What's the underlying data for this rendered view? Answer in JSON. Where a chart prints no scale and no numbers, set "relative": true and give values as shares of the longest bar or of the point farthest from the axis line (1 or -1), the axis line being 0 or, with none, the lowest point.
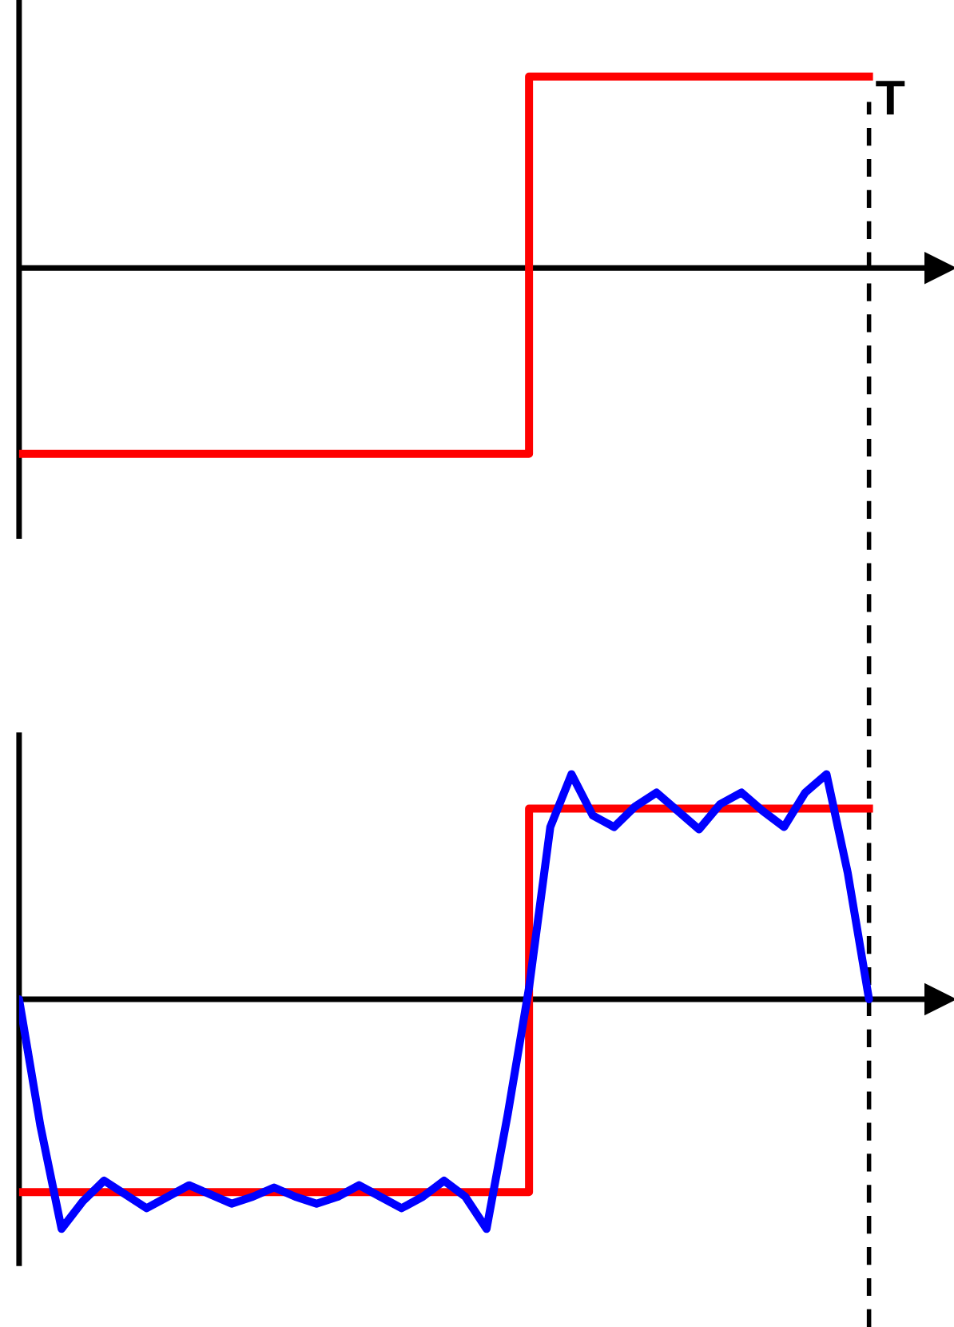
{
  "chart_data": [
    {
      "type": "step",
      "relative": true,
      "categories": [
        null,
        null,
        null,
        null,
        null,
        null,
        null,
        null,
        null,
        null,
        null,
        null,
        null,
        null,
        null,
        null,
        null,
        null,
        null,
        null,
        null,
        null,
        null,
        null,
        null,
        null,
        null,
        null,
        null,
        null,
        null,
        null,
        null,
        null,
        null,
        null,
        null,
        null,
        null,
        null,
        null
      ],
      "series": [
        {
          "color": "#ff0000",
          "values": [
            -0.97,
            -0.97,
            -0.97,
            -0.97,
            -0.97,
            -0.97,
            -0.97,
            -0.97,
            -0.97,
            -0.97,
            -0.97,
            -0.97,
            -0.97,
            -0.97,
            -0.97,
            -0.97,
            -0.97,
            -0.97,
            -0.97,
            -0.97,
            -0.97,
            -0.97,
            -0.97,
            -0.97,
            1,
            1,
            1,
            1,
            1,
            1,
            1,
            1,
            1,
            1,
            1,
            1,
            1,
            1,
            1,
            1,
            1
          ]
        }
      ],
      "ref_lines": [
        {
          "axis": "x",
          "label": "T",
          "color": "#000000",
          "line_style": "dashed"
        }
      ]
    },
    {
      "type": "step",
      "relative": true,
      "categories": [
        null,
        null,
        null,
        null,
        null,
        null,
        null,
        null,
        null,
        null,
        null,
        null,
        null,
        null,
        null,
        null,
        null,
        null,
        null,
        null,
        null,
        null,
        null,
        null,
        null,
        null,
        null,
        null,
        null,
        null,
        null,
        null,
        null,
        null,
        null,
        null,
        null,
        null,
        null,
        null,
        null
      ],
      "series": [
        {
          "color": "#ff0000",
          "values": [
            -0.84,
            -0.84,
            -0.84,
            -0.84,
            -0.84,
            -0.84,
            -0.84,
            -0.84,
            -0.84,
            -0.84,
            -0.84,
            -0.84,
            -0.84,
            -0.84,
            -0.84,
            -0.84,
            -0.84,
            -0.84,
            -0.84,
            -0.84,
            -0.84,
            -0.84,
            -0.84,
            -0.84,
            0.83,
            0.83,
            0.83,
            0.83,
            0.83,
            0.83,
            0.83,
            0.83,
            0.83,
            0.83,
            0.83,
            0.83,
            0.83,
            0.83,
            0.83,
            0.83,
            0.83
          ]
        },
        {
          "type": "line",
          "color": "#0000ff",
          "values": [
            0,
            -0.55,
            -1.0,
            -0.88,
            -0.79,
            -0.85,
            -0.91,
            -0.86,
            -0.81,
            -0.85,
            -0.89,
            -0.86,
            -0.82,
            -0.86,
            -0.89,
            -0.86,
            -0.81,
            -0.86,
            -0.91,
            -0.86,
            -0.79,
            -0.86,
            -1.0,
            -0.5,
            0.05,
            0.75,
            0.98,
            0.8,
            0.75,
            0.84,
            0.9,
            0.82,
            0.74,
            0.85,
            0.9,
            0.82,
            0.75,
            0.9,
            0.98,
            0.55,
            0
          ]
        }
      ]
    }
  ]
}
